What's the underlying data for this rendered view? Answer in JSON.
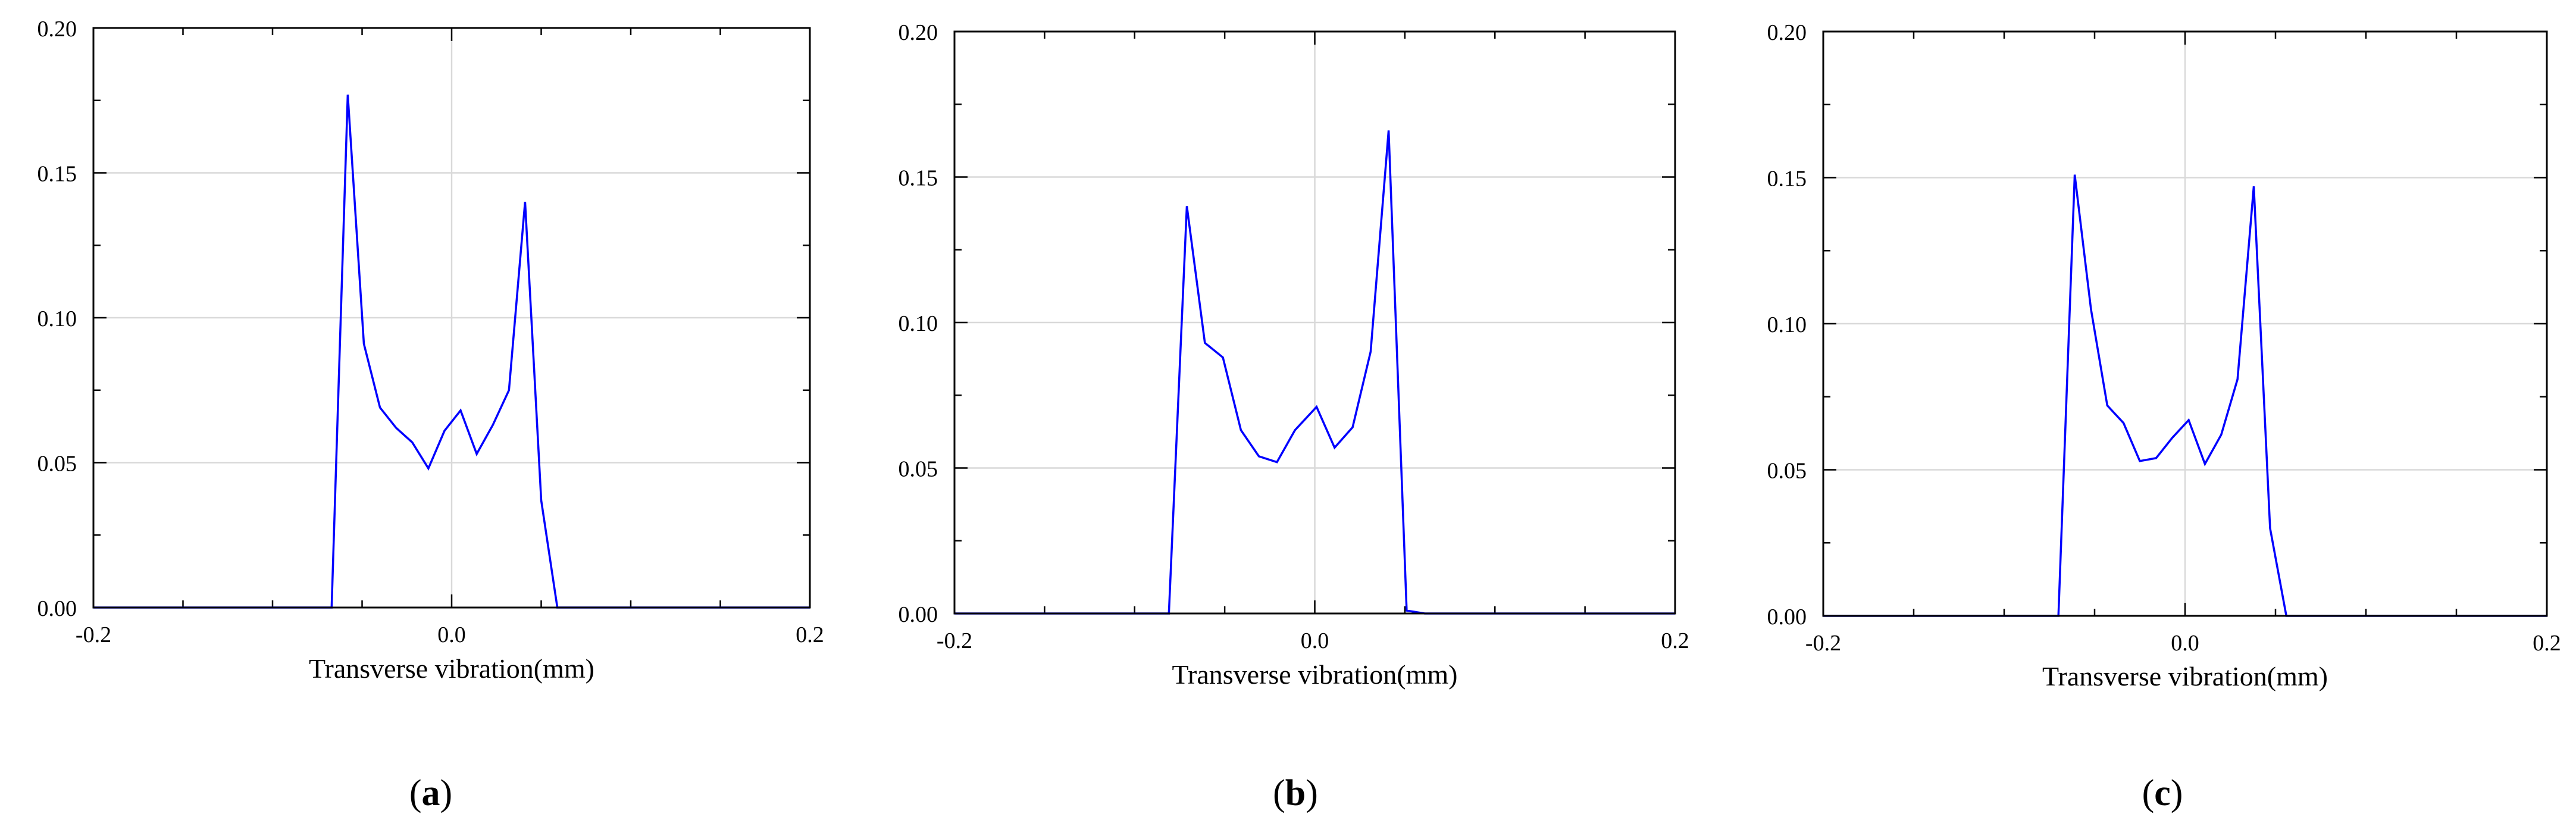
{
  "colors": {
    "line": "#0000FF",
    "grid": "#D9D9D9",
    "axis": "#000000",
    "background": "#FFFFFF"
  },
  "chart_data": [
    {
      "type": "line",
      "panel_label": "a",
      "xlabel": "Transverse vibration(mm)",
      "ylabel": "",
      "xlim": [
        -0.2,
        0.2
      ],
      "ylim": [
        0.0,
        0.2
      ],
      "grid": true,
      "xticks": [
        -0.2,
        0.0,
        0.2
      ],
      "xtick_labels": [
        "-0.2",
        "0.0",
        "0.2"
      ],
      "yticks": [
        0.0,
        0.05,
        0.1,
        0.15,
        0.2
      ],
      "ytick_labels": [
        "0.00",
        "0.05",
        "0.10",
        "0.15",
        "0.20"
      ],
      "series": [
        {
          "x": [
            -0.2,
            -0.067,
            -0.058,
            -0.049,
            -0.04,
            -0.031,
            -0.022,
            -0.013,
            -0.004,
            0.005,
            0.014,
            0.023,
            0.032,
            0.041,
            0.05,
            0.059,
            0.068,
            0.2
          ],
          "y": [
            0.0,
            0.0,
            0.177,
            0.091,
            0.069,
            0.062,
            0.057,
            0.048,
            0.061,
            0.068,
            0.053,
            0.063,
            0.075,
            0.14,
            0.037,
            0.0,
            0.0,
            0.0
          ]
        }
      ]
    },
    {
      "type": "line",
      "panel_label": "b",
      "xlabel": "Transverse vibration(mm)",
      "ylabel": "",
      "xlim": [
        -0.2,
        0.2
      ],
      "ylim": [
        0.0,
        0.2
      ],
      "grid": true,
      "xticks": [
        -0.2,
        0.0,
        0.2
      ],
      "xtick_labels": [
        "-0.2",
        "0.0",
        "0.2"
      ],
      "yticks": [
        0.0,
        0.05,
        0.1,
        0.15,
        0.2
      ],
      "ytick_labels": [
        "0.00",
        "0.05",
        "0.10",
        "0.15",
        "0.20"
      ],
      "series": [
        {
          "x": [
            -0.2,
            -0.081,
            -0.071,
            -0.061,
            -0.051,
            -0.041,
            -0.031,
            -0.021,
            -0.011,
            0.001,
            0.011,
            0.021,
            0.031,
            0.041,
            0.051,
            0.061,
            0.071,
            0.081,
            0.2
          ],
          "y": [
            0.0,
            0.0,
            0.14,
            0.093,
            0.088,
            0.063,
            0.054,
            0.052,
            0.063,
            0.071,
            0.057,
            0.064,
            0.09,
            0.166,
            0.001,
            0.0,
            0.0,
            0.0,
            0.0
          ]
        }
      ]
    },
    {
      "type": "line",
      "panel_label": "c",
      "xlabel": "Transverse vibration(mm)",
      "ylabel": "",
      "xlim": [
        -0.2,
        0.2
      ],
      "ylim": [
        0.0,
        0.2
      ],
      "grid": true,
      "xticks": [
        -0.2,
        0.0,
        0.2
      ],
      "xtick_labels": [
        "-0.2",
        "0.0",
        "0.2"
      ],
      "yticks": [
        0.0,
        0.05,
        0.1,
        0.15,
        0.2
      ],
      "ytick_labels": [
        "0.00",
        "0.05",
        "0.10",
        "0.15",
        "0.20"
      ],
      "series": [
        {
          "x": [
            -0.2,
            -0.07,
            -0.061,
            -0.052,
            -0.043,
            -0.034,
            -0.025,
            -0.016,
            -0.007,
            0.002,
            0.011,
            0.02,
            0.029,
            0.038,
            0.047,
            0.056,
            0.065,
            0.2
          ],
          "y": [
            0.0,
            0.0,
            0.151,
            0.105,
            0.072,
            0.066,
            0.053,
            0.054,
            0.061,
            0.067,
            0.052,
            0.062,
            0.081,
            0.147,
            0.03,
            0.0,
            0.0,
            0.0
          ]
        }
      ]
    }
  ]
}
